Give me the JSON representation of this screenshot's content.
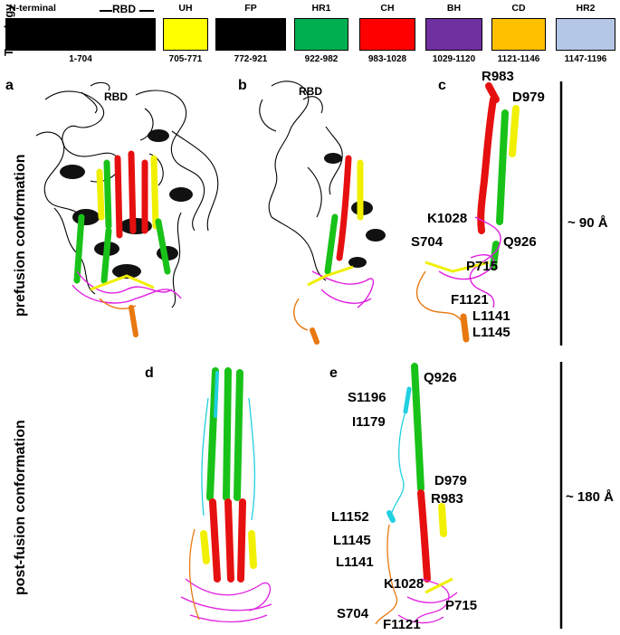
{
  "topology": {
    "axis_label": "Topology",
    "rbd_label": "RBD",
    "segments": [
      {
        "name": "N-terminal",
        "range": "1-704",
        "color": "#000000"
      },
      {
        "name": "UH",
        "range": "705-771",
        "color": "#ffff00"
      },
      {
        "name": "FP",
        "range": "772-921",
        "color": "#000000"
      },
      {
        "name": "HR1",
        "range": "922-982",
        "color": "#00b050"
      },
      {
        "name": "CH",
        "range": "983-1028",
        "color": "#ff0000"
      },
      {
        "name": "BH",
        "range": "1029-1120",
        "color": "#7030a0"
      },
      {
        "name": "CD",
        "range": "1121-1146",
        "color": "#ffc000"
      },
      {
        "name": "HR2",
        "range": "1147-1196",
        "color": "#b4c7e7"
      }
    ]
  },
  "row_labels": {
    "prefusion": "prefusion conformation",
    "postfusion": "post-fusion conformation"
  },
  "panels": {
    "a": {
      "letter": "a",
      "rbd": "RBD"
    },
    "b": {
      "letter": "b",
      "rbd": "RBD"
    },
    "c": {
      "letter": "c",
      "residues": [
        "R983",
        "D979",
        "K1028",
        "S704",
        "Q926",
        "P715",
        "F1121",
        "L1141",
        "L1145"
      ]
    },
    "d": {
      "letter": "d"
    },
    "e": {
      "letter": "e",
      "residues": [
        "S1196",
        "Q926",
        "I1179",
        "D979",
        "R983",
        "L1152",
        "L1145",
        "L1141",
        "K1028",
        "P715",
        "S704",
        "F1121"
      ]
    }
  },
  "scales": {
    "prefusion": "~ 90 Å",
    "postfusion": "~ 180 Å"
  },
  "colors": {
    "helix_green": "#19c219",
    "helix_red": "#e61010",
    "helix_yellow": "#f0f000",
    "magenta": "#e020e0",
    "orange": "#e87810",
    "cyan": "#20d0e0",
    "black": "#000000"
  }
}
